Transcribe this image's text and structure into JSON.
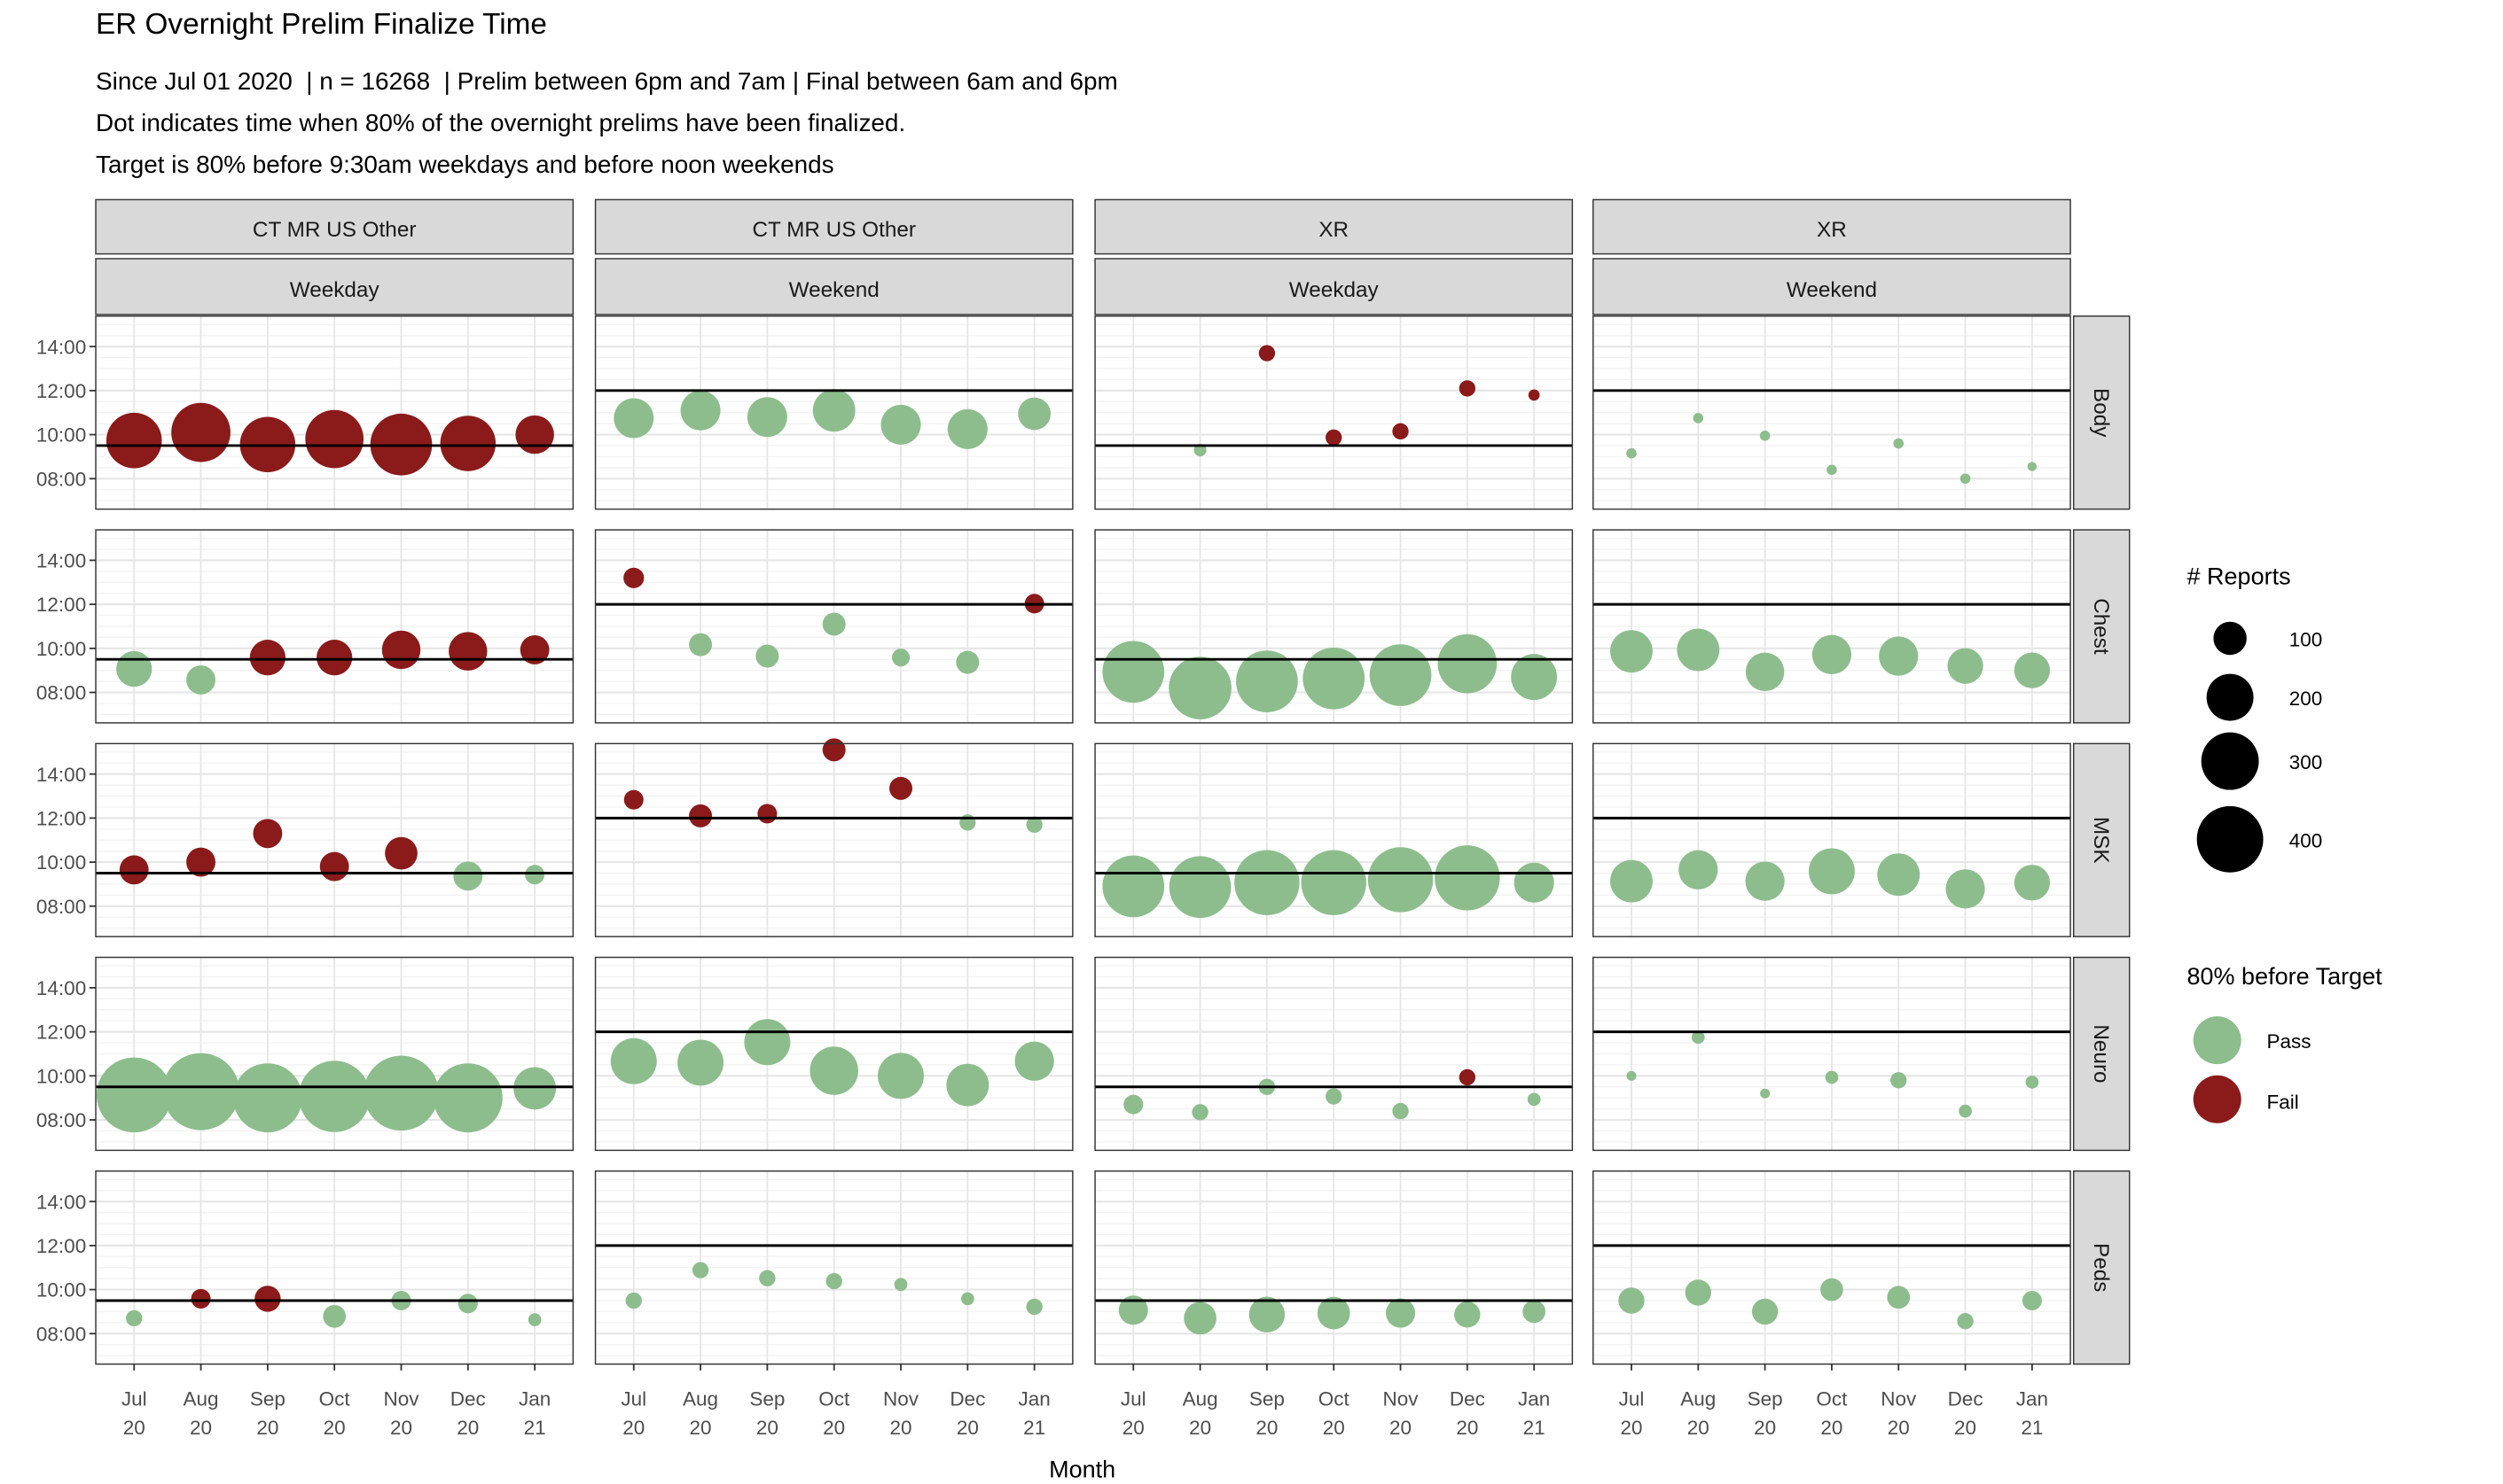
{
  "chart_data": {
    "type": "scatter",
    "title": "ER Overnight Prelim Finalize Time",
    "subtitle": [
      "Since Jul 01 2020  | n = 16268  | Prelim between 6pm and 7am | Final between 6am and 6pm",
      "Dot indicates time when 80% of the overnight prelims have been finalized.",
      "Target is 80% before 9:30am weekdays and before noon weekends"
    ],
    "xlabel": "Month",
    "ylabel": "",
    "categories": [
      "Jul 20",
      "Aug 20",
      "Sep 20",
      "Oct 20",
      "Nov 20",
      "Dec 20",
      "Jan 21"
    ],
    "y_ticks": [
      "08:00",
      "10:00",
      "12:00",
      "14:00"
    ],
    "ylim": [
      "06:37",
      "15:23"
    ],
    "grid": true,
    "colors": {
      "Pass": "#8dbd8d",
      "Fail": "#8b1a1a"
    },
    "columns": [
      {
        "modality": "CT MR US Other",
        "day": "Weekday",
        "target": "09:30"
      },
      {
        "modality": "CT MR US Other",
        "day": "Weekend",
        "target": "12:00"
      },
      {
        "modality": "XR",
        "day": "Weekday",
        "target": "09:30"
      },
      {
        "modality": "XR",
        "day": "Weekend",
        "target": "12:00"
      }
    ],
    "rows": [
      "Body",
      "Chest",
      "MSK",
      "Neuro",
      "Peds"
    ],
    "point_fields": [
      "time",
      "reports",
      "result"
    ],
    "panels": {
      "Body": [
        [
          [
            "09:44",
            290,
            "Fail"
          ],
          [
            "10:06",
            330,
            "Fail"
          ],
          [
            "09:33",
            290,
            "Fail"
          ],
          [
            "09:48",
            320,
            "Fail"
          ],
          [
            "09:33",
            360,
            "Fail"
          ],
          [
            "09:36",
            290,
            "Fail"
          ],
          [
            "10:00",
            140,
            "Fail"
          ]
        ],
        [
          [
            "10:45",
            150,
            "Pass"
          ],
          [
            "11:06",
            150,
            "Pass"
          ],
          [
            "10:48",
            150,
            "Pass"
          ],
          [
            "11:06",
            170,
            "Pass"
          ],
          [
            "10:27",
            150,
            "Pass"
          ],
          [
            "10:15",
            150,
            "Pass"
          ],
          [
            "10:57",
            100,
            "Pass"
          ]
        ],
        [
          null,
          [
            "09:18",
            15,
            "Pass"
          ],
          [
            "13:42",
            25,
            "Fail"
          ],
          [
            "09:52",
            25,
            "Fail"
          ],
          [
            "10:09",
            25,
            "Fail"
          ],
          [
            "12:06",
            25,
            "Fail"
          ],
          [
            "11:48",
            12,
            "Fail"
          ]
        ],
        [
          [
            "09:09",
            10,
            "Pass"
          ],
          [
            "10:45",
            10,
            "Pass"
          ],
          [
            "09:57",
            10,
            "Pass"
          ],
          [
            "08:24",
            10,
            "Pass"
          ],
          [
            "09:36",
            10,
            "Pass"
          ],
          [
            "08:00",
            10,
            "Pass"
          ],
          [
            "08:33",
            8,
            "Pass"
          ]
        ]
      ],
      "Chest": [
        [
          [
            "09:04",
            120,
            "Pass"
          ],
          [
            "08:34",
            80,
            "Pass"
          ],
          [
            "09:35",
            120,
            "Fail"
          ],
          [
            "09:35",
            120,
            "Fail"
          ],
          [
            "09:56",
            140,
            "Fail"
          ],
          [
            "09:52",
            140,
            "Fail"
          ],
          [
            "09:56",
            80,
            "Fail"
          ]
        ],
        [
          [
            "13:12",
            40,
            "Fail"
          ],
          [
            "10:10",
            50,
            "Pass"
          ],
          [
            "09:39",
            50,
            "Pass"
          ],
          [
            "11:06",
            50,
            "Pass"
          ],
          [
            "09:35",
            30,
            "Pass"
          ],
          [
            "09:22",
            50,
            "Pass"
          ],
          [
            "12:02",
            36,
            "Fail"
          ]
        ],
        [
          [
            "08:56",
            360,
            "Pass"
          ],
          [
            "08:12",
            370,
            "Pass"
          ],
          [
            "08:30",
            360,
            "Pass"
          ],
          [
            "08:38",
            360,
            "Pass"
          ],
          [
            "08:47",
            360,
            "Pass"
          ],
          [
            "09:18",
            330,
            "Pass"
          ],
          [
            "08:42",
            200,
            "Pass"
          ]
        ],
        [
          [
            "09:52",
            170,
            "Pass"
          ],
          [
            "09:56",
            170,
            "Pass"
          ],
          [
            "08:56",
            140,
            "Pass"
          ],
          [
            "09:43",
            145,
            "Pass"
          ],
          [
            "09:39",
            145,
            "Pass"
          ],
          [
            "09:12",
            120,
            "Pass"
          ],
          [
            "09:00",
            120,
            "Pass"
          ]
        ]
      ],
      "MSK": [
        [
          [
            "09:39",
            80,
            "Fail"
          ],
          [
            "10:00",
            80,
            "Fail"
          ],
          [
            "11:18",
            80,
            "Fail"
          ],
          [
            "09:48",
            80,
            "Fail"
          ],
          [
            "10:24",
            100,
            "Fail"
          ],
          [
            "09:22",
            80,
            "Pass"
          ],
          [
            "09:26",
            36,
            "Pass"
          ]
        ],
        [
          [
            "12:50",
            36,
            "Fail"
          ],
          [
            "12:06",
            50,
            "Fail"
          ],
          [
            "12:12",
            36,
            "Fail"
          ],
          [
            "15:06",
            50,
            "Fail"
          ],
          [
            "13:21",
            50,
            "Fail"
          ],
          [
            "11:48",
            25,
            "Pass"
          ],
          [
            "11:42",
            25,
            "Pass"
          ]
        ],
        [
          [
            "08:54",
            360,
            "Pass"
          ],
          [
            "08:52",
            360,
            "Pass"
          ],
          [
            "09:04",
            400,
            "Pass"
          ],
          [
            "09:04",
            400,
            "Pass"
          ],
          [
            "09:12",
            400,
            "Pass"
          ],
          [
            "09:17",
            400,
            "Pass"
          ],
          [
            "09:04",
            150,
            "Pass"
          ]
        ],
        [
          [
            "09:08",
            170,
            "Pass"
          ],
          [
            "09:39",
            145,
            "Pass"
          ],
          [
            "09:08",
            145,
            "Pass"
          ],
          [
            "09:35",
            200,
            "Pass"
          ],
          [
            "09:26",
            170,
            "Pass"
          ],
          [
            "08:47",
            145,
            "Pass"
          ],
          [
            "09:04",
            120,
            "Pass"
          ]
        ]
      ],
      "Neuro": [
        [
          [
            "09:08",
            530,
            "Pass"
          ],
          [
            "09:17",
            560,
            "Pass"
          ],
          [
            "09:00",
            450,
            "Pass"
          ],
          [
            "09:04",
            480,
            "Pass"
          ],
          [
            "09:13",
            530,
            "Pass"
          ],
          [
            "09:00",
            450,
            "Pass"
          ],
          [
            "09:26",
            170,
            "Pass"
          ]
        ],
        [
          [
            "10:40",
            200,
            "Pass"
          ],
          [
            "10:36",
            200,
            "Pass"
          ],
          [
            "11:32",
            200,
            "Pass"
          ],
          [
            "10:14",
            220,
            "Pass"
          ],
          [
            "10:00",
            200,
            "Pass"
          ],
          [
            "09:35",
            170,
            "Pass"
          ],
          [
            "10:40",
            145,
            "Pass"
          ]
        ],
        [
          [
            "08:42",
            36,
            "Pass"
          ],
          [
            "08:21",
            25,
            "Pass"
          ],
          [
            "09:30",
            25,
            "Pass"
          ],
          [
            "09:04",
            25,
            "Pass"
          ],
          [
            "08:24",
            25,
            "Pass"
          ],
          [
            "09:56",
            25,
            "Fail"
          ],
          [
            "08:56",
            16,
            "Pass"
          ]
        ],
        [
          [
            "10:00",
            9,
            "Pass"
          ],
          [
            "11:45",
            16,
            "Pass"
          ],
          [
            "09:12",
            9,
            "Pass"
          ],
          [
            "09:56",
            16,
            "Pass"
          ],
          [
            "09:48",
            25,
            "Pass"
          ],
          [
            "08:24",
            16,
            "Pass"
          ],
          [
            "09:43",
            16,
            "Pass"
          ]
        ]
      ],
      "Peds": [
        [
          [
            "08:42",
            25,
            "Pass"
          ],
          [
            "09:35",
            36,
            "Fail"
          ],
          [
            "09:35",
            64,
            "Fail"
          ],
          [
            "08:47",
            49,
            "Pass"
          ],
          [
            "09:30",
            36,
            "Pass"
          ],
          [
            "09:22",
            36,
            "Pass"
          ],
          [
            "08:38",
            16,
            "Pass"
          ]
        ],
        [
          [
            "09:30",
            25,
            "Pass"
          ],
          [
            "10:53",
            25,
            "Pass"
          ],
          [
            "10:31",
            25,
            "Pass"
          ],
          [
            "10:23",
            25,
            "Pass"
          ],
          [
            "10:14",
            16,
            "Pass"
          ],
          [
            "09:35",
            16,
            "Pass"
          ],
          [
            "09:13",
            25,
            "Pass"
          ]
        ],
        [
          [
            "09:04",
            81,
            "Pass"
          ],
          [
            "08:42",
            100,
            "Pass"
          ],
          [
            "08:52",
            121,
            "Pass"
          ],
          [
            "08:56",
            100,
            "Pass"
          ],
          [
            "08:56",
            81,
            "Pass"
          ],
          [
            "08:52",
            64,
            "Pass"
          ],
          [
            "09:00",
            49,
            "Pass"
          ]
        ],
        [
          [
            "09:30",
            64,
            "Pass"
          ],
          [
            "09:52",
            64,
            "Pass"
          ],
          [
            "09:00",
            64,
            "Pass"
          ],
          [
            "10:00",
            49,
            "Pass"
          ],
          [
            "09:39",
            49,
            "Pass"
          ],
          [
            "08:34",
            25,
            "Pass"
          ],
          [
            "09:30",
            36,
            "Pass"
          ]
        ]
      ]
    },
    "legend": {
      "size": {
        "title": "# Reports",
        "values": [
          100,
          200,
          300,
          400
        ],
        "labels": [
          "100",
          "200",
          "300",
          "400"
        ]
      },
      "color": {
        "title": "80% before Target",
        "labels": [
          "Pass",
          "Fail"
        ]
      },
      "placement": "right"
    }
  }
}
